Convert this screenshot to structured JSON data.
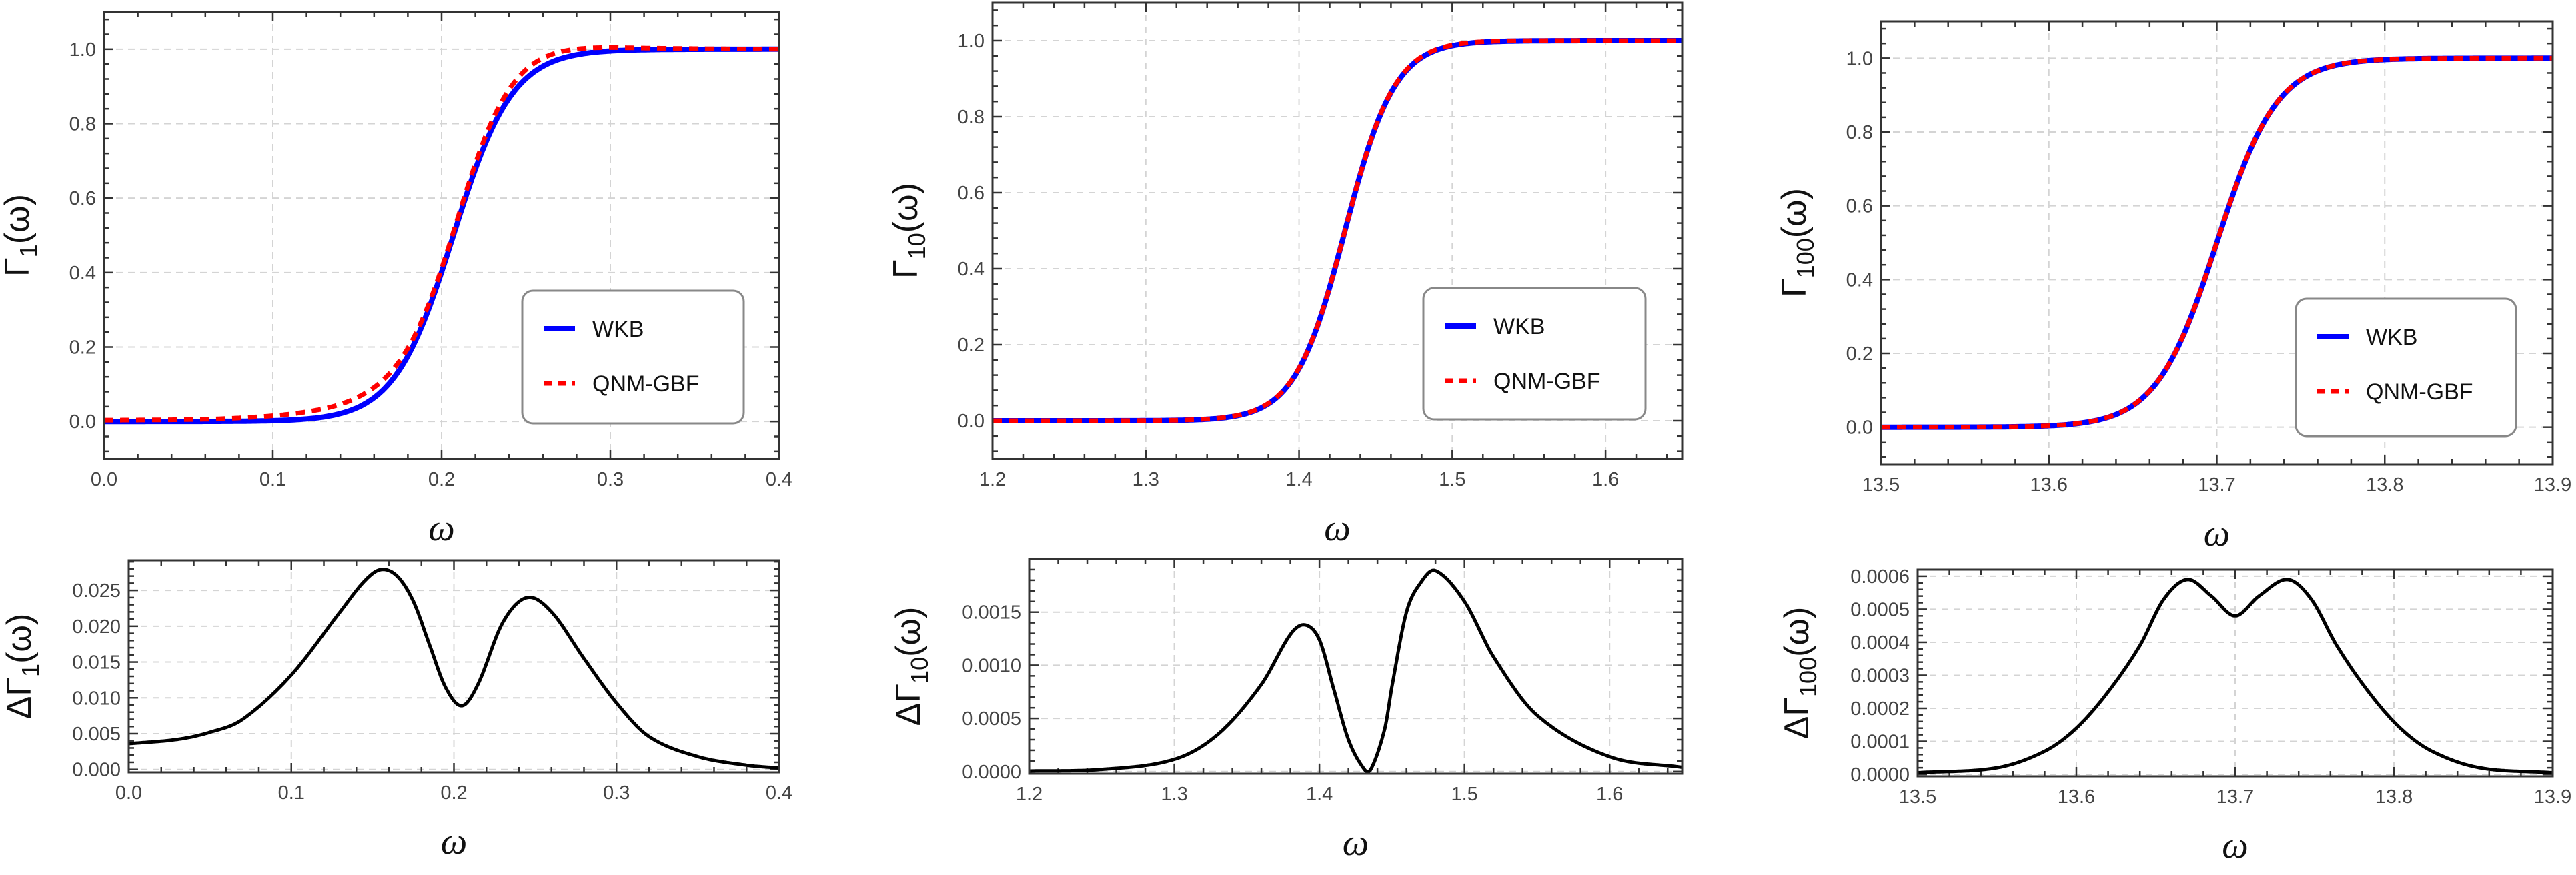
{
  "chart_data": [
    {
      "id": "gamma-1",
      "type": "line",
      "xlim": [
        0.0,
        0.4
      ],
      "ylim": [
        -0.1,
        1.1
      ],
      "xtick_labels": [
        "0.0",
        "0.1",
        "0.2",
        "0.3",
        "0.4"
      ],
      "ytick_labels": [
        "0.0",
        "0.2",
        "0.4",
        "0.6",
        "0.8",
        "1.0"
      ],
      "xlabel": "ω",
      "ylabel": {
        "prefix": "",
        "main": "Γ",
        "sub": "1",
        "arg": "(ω)"
      },
      "grid": true,
      "legend": {
        "position": "bottom-right"
      },
      "series": [
        {
          "name": "WKB",
          "color": "#0000ff",
          "style": "solid",
          "model": {
            "type": "logistic",
            "center": 0.207,
            "width": 0.0175
          }
        },
        {
          "name": "QNM-GBF",
          "color": "#ff0000",
          "style": "dashed",
          "offset_from": "delta-1"
        }
      ]
    },
    {
      "id": "gamma-10",
      "type": "line",
      "xlim": [
        1.2,
        1.65
      ],
      "ylim": [
        -0.1,
        1.1
      ],
      "xtick_labels": [
        "1.2",
        "1.3",
        "1.4",
        "1.5",
        "1.6"
      ],
      "ytick_labels": [
        "0.0",
        "0.2",
        "0.4",
        "0.6",
        "0.8",
        "1.0"
      ],
      "xlabel": "ω",
      "ylabel": {
        "prefix": "",
        "main": "Γ",
        "sub": "10",
        "arg": "(ω)"
      },
      "grid": true,
      "legend": {
        "position": "bottom-right"
      },
      "series": [
        {
          "name": "WKB",
          "color": "#0000ff",
          "style": "solid",
          "model": {
            "type": "logistic",
            "center": 1.43,
            "width": 0.0163
          }
        },
        {
          "name": "QNM-GBF",
          "color": "#ff0000",
          "style": "dashed",
          "offset_from": "delta-10"
        }
      ]
    },
    {
      "id": "gamma-100",
      "type": "line",
      "xlim": [
        13.5,
        13.9
      ],
      "ylim": [
        -0.1,
        1.1
      ],
      "xtick_labels": [
        "13.5",
        "13.6",
        "13.7",
        "13.8",
        "13.9"
      ],
      "ytick_labels": [
        "0.0",
        "0.2",
        "0.4",
        "0.6",
        "0.8",
        "1.0"
      ],
      "xlabel": "ω",
      "ylabel": {
        "prefix": "",
        "main": "Γ",
        "sub": "100",
        "arg": "(ω)"
      },
      "grid": true,
      "legend": {
        "position": "bottom-right"
      },
      "series": [
        {
          "name": "WKB",
          "color": "#0000ff",
          "style": "solid",
          "model": {
            "type": "logistic",
            "center": 13.7,
            "width": 0.018
          }
        },
        {
          "name": "QNM-GBF",
          "color": "#ff0000",
          "style": "dashed",
          "offset_from": "delta-100"
        }
      ]
    },
    {
      "id": "delta-1",
      "type": "line",
      "xlim": [
        0.0,
        0.4
      ],
      "ylim": [
        -0.0004,
        0.0292
      ],
      "xtick_labels": [
        "0.0",
        "0.1",
        "0.2",
        "0.3",
        "0.4"
      ],
      "ytick_labels": [
        "0.000",
        "0.005",
        "0.010",
        "0.015",
        "0.020",
        "0.025"
      ],
      "xlabel": "ω",
      "ylabel": {
        "prefix": "Δ",
        "main": "Γ",
        "sub": "1",
        "arg": "(ω)"
      },
      "grid": true,
      "series": [
        {
          "name": "ΔΓ1",
          "color": "#000000",
          "style": "solid",
          "x": [
            0,
            0.03,
            0.05,
            0.07,
            0.1,
            0.13,
            0.145,
            0.155,
            0.165,
            0.175,
            0.185,
            0.195,
            0.205,
            0.215,
            0.23,
            0.245,
            0.26,
            0.28,
            0.3,
            0.32,
            0.35,
            0.38,
            0.4
          ],
          "y": [
            0.0036,
            0.0042,
            0.0052,
            0.007,
            0.0132,
            0.022,
            0.0263,
            0.0279,
            0.027,
            0.0235,
            0.0174,
            0.0114,
            0.0089,
            0.012,
            0.0205,
            0.024,
            0.022,
            0.0155,
            0.0093,
            0.0046,
            0.0018,
            0.0006,
            0.0002
          ]
        }
      ]
    },
    {
      "id": "delta-10",
      "type": "line",
      "xlim": [
        1.2,
        1.65
      ],
      "ylim": [
        -2e-05,
        0.002
      ],
      "xtick_labels": [
        "1.2",
        "1.3",
        "1.4",
        "1.5",
        "1.6"
      ],
      "ytick_labels": [
        "0.0000",
        "0.0005",
        "0.0010",
        "0.0015"
      ],
      "xlabel": "ω",
      "ylabel": {
        "prefix": "Δ",
        "main": "Γ",
        "sub": "10",
        "arg": "(ω)"
      },
      "grid": true,
      "series": [
        {
          "name": "ΔΓ10",
          "color": "#000000",
          "style": "solid",
          "x": [
            1.2,
            1.25,
            1.3,
            1.33,
            1.36,
            1.38,
            1.39,
            1.4,
            1.41,
            1.42,
            1.43,
            1.435,
            1.445,
            1.45,
            1.46,
            1.47,
            1.48,
            1.5,
            1.52,
            1.55,
            1.6,
            1.65
          ],
          "y": [
            5e-06,
            2e-05,
            0.000115,
            0.00035,
            0.00082,
            0.00129,
            0.00138,
            0.00124,
            0.00077,
            0.0003,
            4e-05,
            1e-05,
            0.0004,
            0.0008,
            0.0015,
            0.00178,
            0.00189,
            0.0016,
            0.00108,
            0.00053,
            0.00014,
            4e-05
          ]
        }
      ]
    },
    {
      "id": "delta-100",
      "type": "line",
      "xlim": [
        13.5,
        13.9
      ],
      "ylim": [
        -6e-06,
        0.00062
      ],
      "xtick_labels": [
        "13.5",
        "13.6",
        "13.7",
        "13.8",
        "13.9"
      ],
      "ytick_labels": [
        "0.0000",
        "0.0001",
        "0.0002",
        "0.0003",
        "0.0004",
        "0.0005",
        "0.0006"
      ],
      "xlabel": "ω",
      "ylabel": {
        "prefix": "Δ",
        "main": "Γ",
        "sub": "100",
        "arg": "(ω)"
      },
      "grid": true,
      "series": [
        {
          "name": "ΔΓ100",
          "color": "#000000",
          "style": "solid",
          "x": [
            13.5,
            13.55,
            13.58,
            13.6,
            13.62,
            13.64,
            13.655,
            13.67,
            13.685,
            13.7,
            13.715,
            13.733,
            13.748,
            13.764,
            13.784,
            13.804,
            13.824,
            13.854,
            13.9
          ],
          "y": [
            5e-06,
            2e-05,
            7e-05,
            0.00014,
            0.00025,
            0.00039,
            0.00053,
            0.00059,
            0.00054,
            0.00048,
            0.00054,
            0.00059,
            0.00053,
            0.00039,
            0.00025,
            0.00014,
            7e-05,
            2e-05,
            5e-06
          ]
        }
      ]
    }
  ]
}
